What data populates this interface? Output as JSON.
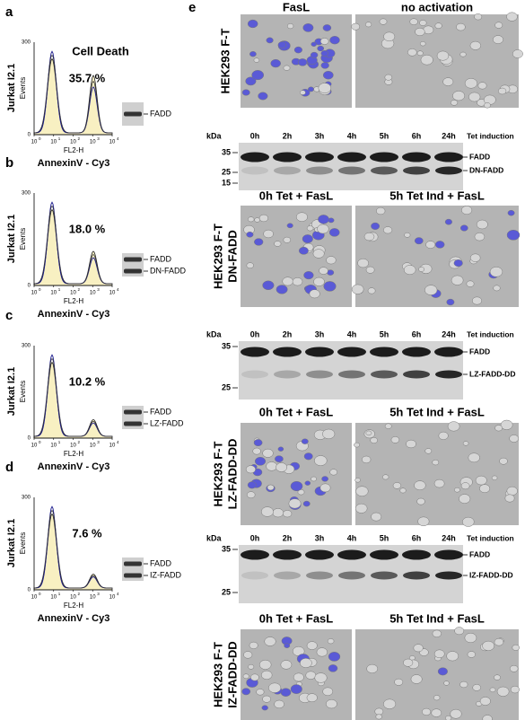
{
  "figure": {
    "left_panels": [
      {
        "letter": "a",
        "title": "Cell Death",
        "y_label": "Jurkat I2.1",
        "y_sublabel": "Events",
        "y_ticks": [
          "300",
          "0"
        ],
        "x_ticks": [
          {
            "base": "10",
            "exp": "0"
          },
          {
            "base": "10",
            "exp": "1"
          },
          {
            "base": "10",
            "exp": "2"
          },
          {
            "base": "10",
            "exp": "3"
          },
          {
            "base": "10",
            "exp": "4"
          }
        ],
        "x_sublabel": "FL2-H",
        "x_label": "AnnexinV - Cy3",
        "percent": "35.7 %",
        "blot_labels": [
          "FADD"
        ]
      },
      {
        "letter": "b",
        "y_label": "Jurkat I2.1",
        "y_sublabel": "Events",
        "y_ticks": [
          "300",
          "0"
        ],
        "x_ticks": [
          {
            "base": "10",
            "exp": "0"
          },
          {
            "base": "10",
            "exp": "1"
          },
          {
            "base": "10",
            "exp": "2"
          },
          {
            "base": "10",
            "exp": "3"
          },
          {
            "base": "10",
            "exp": "4"
          }
        ],
        "x_sublabel": "FL2-H",
        "x_label": "AnnexinV - Cy3",
        "percent": "18.0 %",
        "blot_labels": [
          "FADD",
          "DN-FADD"
        ]
      },
      {
        "letter": "c",
        "y_label": "Jurkat I2.1",
        "y_sublabel": "Events",
        "y_ticks": [
          "300",
          "0"
        ],
        "x_ticks": [
          {
            "base": "10",
            "exp": "0"
          },
          {
            "base": "10",
            "exp": "1"
          },
          {
            "base": "10",
            "exp": "2"
          },
          {
            "base": "10",
            "exp": "3"
          },
          {
            "base": "10",
            "exp": "4"
          }
        ],
        "x_sublabel": "FL2-H",
        "x_label": "AnnexinV - Cy3",
        "percent": "10.2 %",
        "blot_labels": [
          "FADD",
          "LZ-FADD"
        ]
      },
      {
        "letter": "d",
        "y_label": "Jurkat I2.1",
        "y_sublabel": "Events",
        "y_ticks": [
          "300",
          "0"
        ],
        "x_ticks": [
          {
            "base": "10",
            "exp": "0"
          },
          {
            "base": "10",
            "exp": "1"
          },
          {
            "base": "10",
            "exp": "2"
          },
          {
            "base": "10",
            "exp": "3"
          },
          {
            "base": "10",
            "exp": "4"
          }
        ],
        "x_sublabel": "FL2-H",
        "x_label": "AnnexinV - Cy3",
        "percent": "7.6 %",
        "blot_labels": [
          "FADD",
          "IZ-FADD"
        ]
      }
    ],
    "panel_e": {
      "letter": "e",
      "image_rows": [
        {
          "side_label": [
            "HEK293 F-T"
          ],
          "headers": [
            "FasL",
            "no activation"
          ]
        },
        {
          "side_label": [
            "HEK293 F-T",
            "DN-FADD"
          ],
          "headers": [
            "0h Tet + FasL",
            "5h Tet Ind + FasL"
          ]
        },
        {
          "side_label": [
            "HEK293 F-T",
            "LZ-FADD-DD"
          ],
          "headers": [
            "0h Tet + FasL",
            "5h Tet Ind + FasL"
          ]
        },
        {
          "side_label": [
            "HEK293 F-T",
            "IZ-FADD-DD"
          ],
          "headers": [
            "0h Tet + FasL",
            "5h Tet Ind + FasL"
          ]
        }
      ],
      "blots": [
        {
          "unit": "kDa",
          "lanes": [
            "0h",
            "2h",
            "3h",
            "4h",
            "5h",
            "6h",
            "24h"
          ],
          "condition": "Tet induction",
          "markers": [
            "35",
            "25",
            "15"
          ],
          "bands": [
            "FADD",
            "DN-FADD"
          ]
        },
        {
          "unit": "kDa",
          "lanes": [
            "0h",
            "2h",
            "3h",
            "4h",
            "5h",
            "6h",
            "24h"
          ],
          "condition": "Tet induction",
          "markers": [
            "35",
            "25"
          ],
          "bands": [
            "FADD",
            "LZ-FADD-DD"
          ]
        },
        {
          "unit": "kDa",
          "lanes": [
            "0h",
            "2h",
            "3h",
            "4h",
            "5h",
            "6h",
            "24h"
          ],
          "condition": "Tet induction",
          "markers": [
            "35",
            "25"
          ],
          "bands": [
            "FADD",
            "IZ-FADD-DD"
          ]
        }
      ]
    }
  }
}
